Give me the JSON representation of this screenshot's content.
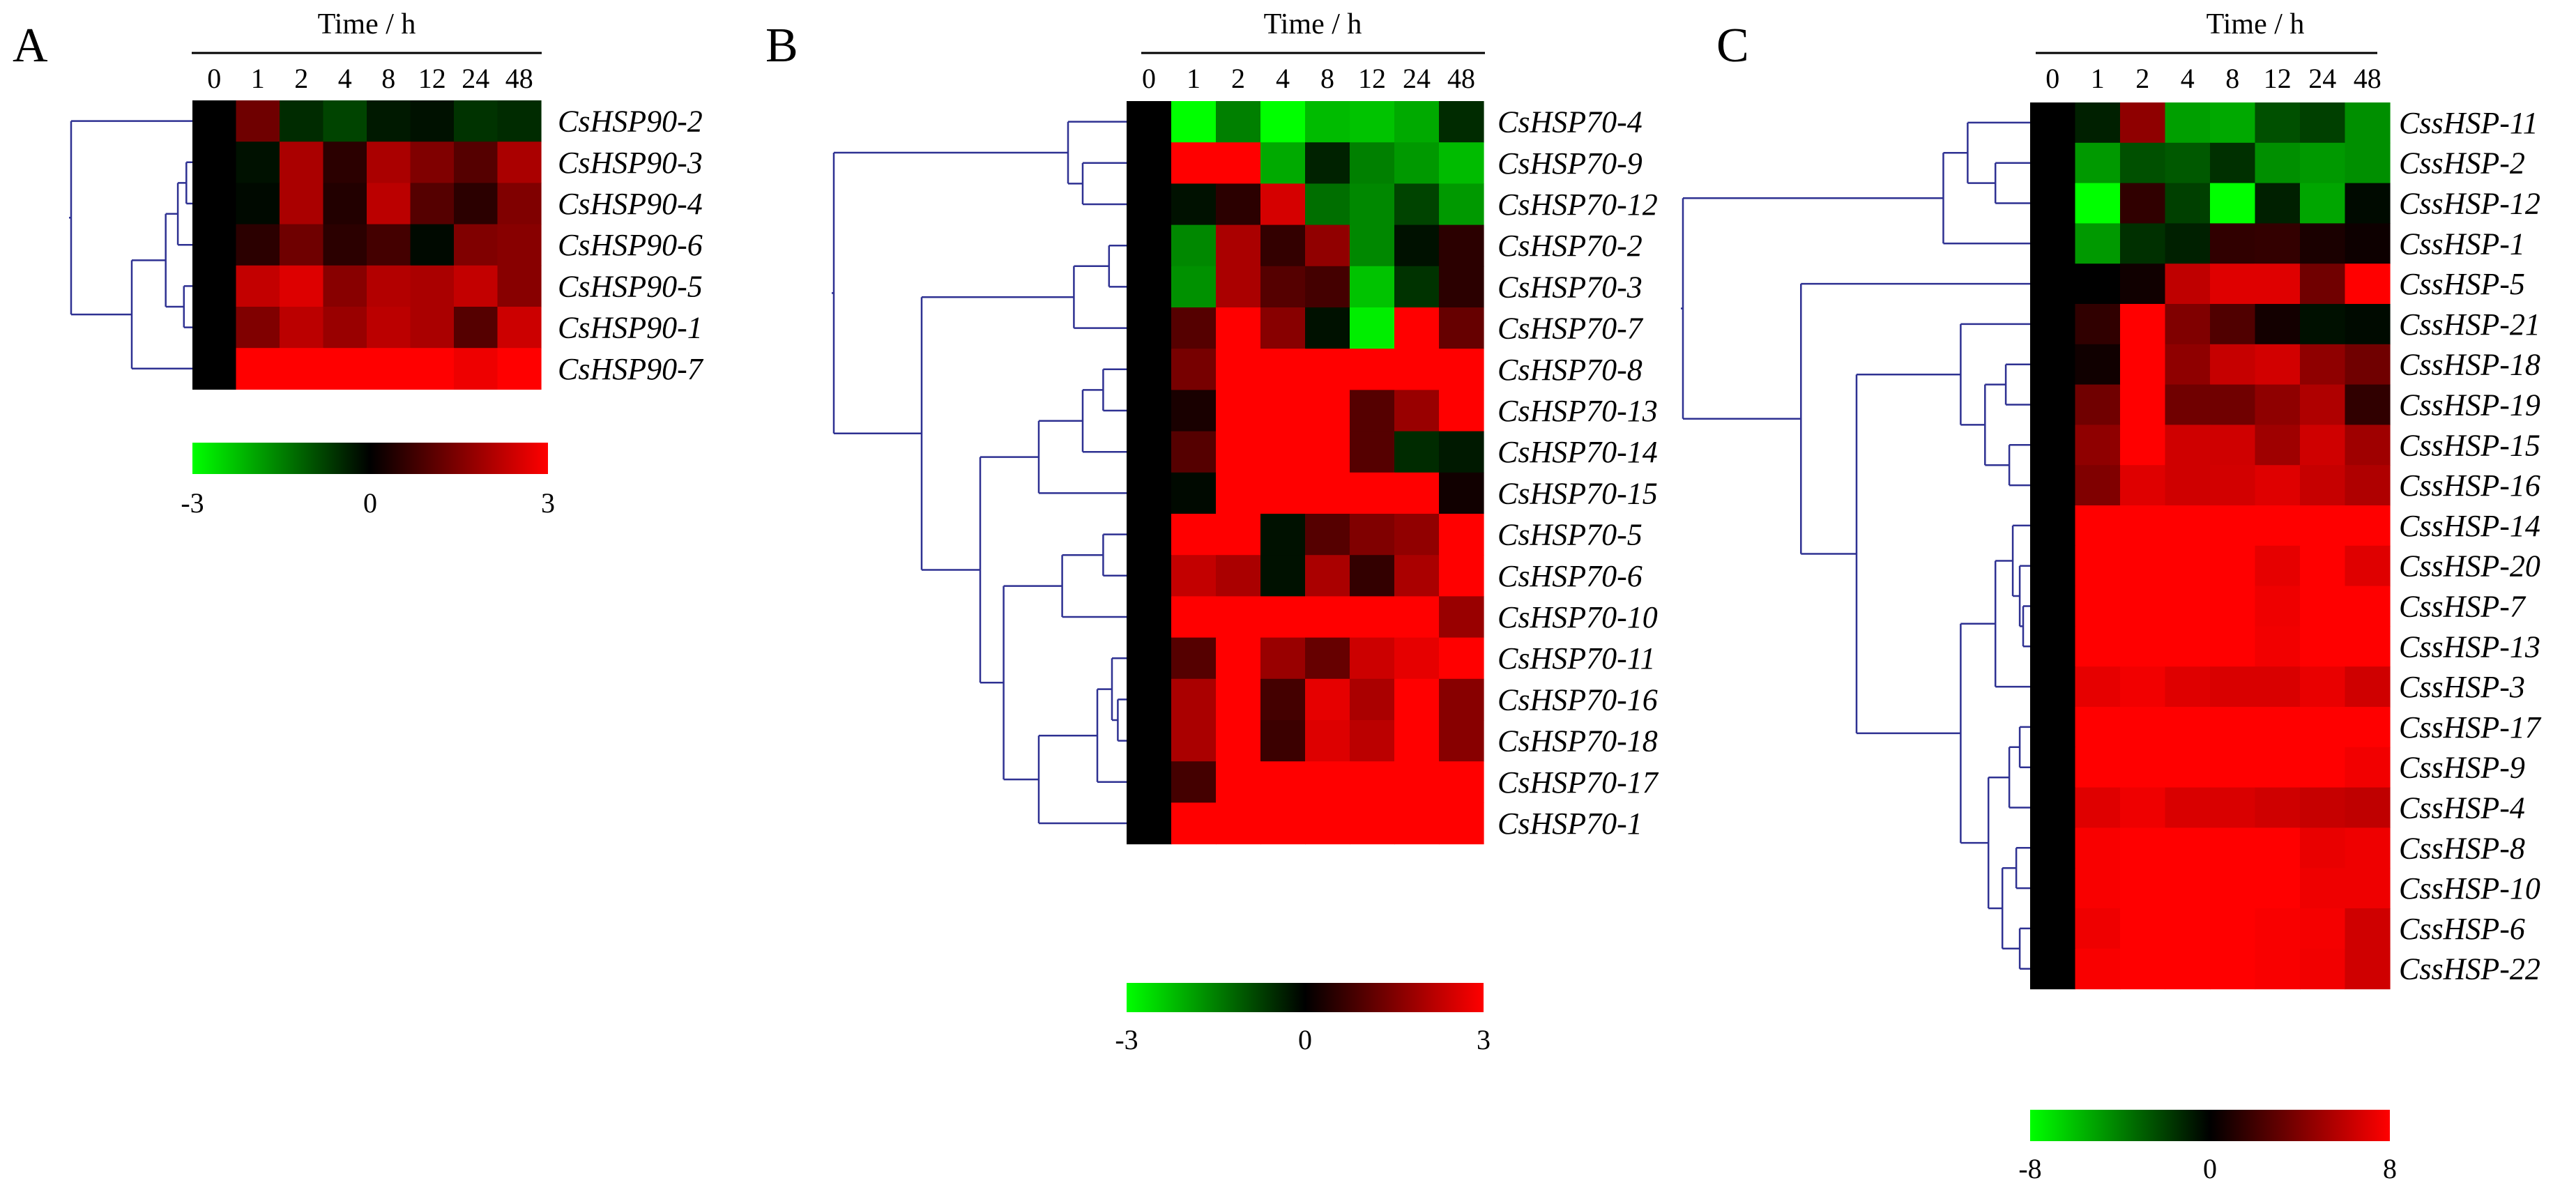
{
  "chart_data": [
    {
      "type": "heatmap",
      "panel": "A",
      "title": "Time / h",
      "columns": [
        "0",
        "1",
        "2",
        "4",
        "8",
        "12",
        "24",
        "48"
      ],
      "rows": [
        "CsHSP90-2",
        "CsHSP90-3",
        "CsHSP90-4",
        "CsHSP90-6",
        "CsHSP90-5",
        "CsHSP90-1",
        "CsHSP90-7"
      ],
      "values": [
        [
          0,
          1.3,
          -0.5,
          -0.8,
          -0.3,
          -0.2,
          -0.6,
          -0.5
        ],
        [
          0,
          -0.2,
          2.0,
          0.5,
          2.0,
          1.5,
          1.0,
          2.0
        ],
        [
          0,
          -0.1,
          2.0,
          0.4,
          2.2,
          1.0,
          0.5,
          1.5
        ],
        [
          0,
          0.5,
          1.3,
          0.5,
          0.8,
          -0.1,
          1.5,
          1.6
        ],
        [
          0,
          2.3,
          2.6,
          1.6,
          2.1,
          2.0,
          2.3,
          1.6
        ],
        [
          0,
          1.5,
          2.2,
          1.8,
          2.2,
          2.0,
          1.0,
          2.4
        ],
        [
          0,
          3,
          3,
          3,
          3,
          3,
          2.8,
          3
        ]
      ],
      "scale": {
        "min": -3,
        "max": 3,
        "tick_labels": [
          "-3",
          "0",
          "3"
        ],
        "low_color": "#00FF00",
        "mid_color": "#000000",
        "high_color": "#FF0000"
      },
      "dendrogram": {
        "root": {
          "d": 1.0,
          "c": [
            {
              "leaf": 0
            },
            {
              "d": 0.5,
              "c": [
                {
                  "d": 0.22,
                  "c": [
                    {
                      "d": 0.12,
                      "c": [
                        {
                          "d": 0.05,
                          "c": [
                            {
                              "leaf": 1
                            },
                            {
                              "leaf": 2
                            }
                          ]
                        },
                        {
                          "leaf": 3
                        }
                      ]
                    },
                    {
                      "d": 0.07,
                      "c": [
                        {
                          "leaf": 4
                        },
                        {
                          "leaf": 5
                        }
                      ]
                    }
                  ]
                },
                {
                  "leaf": 6
                }
              ]
            }
          ]
        }
      }
    },
    {
      "type": "heatmap",
      "panel": "B",
      "title": "Time / h",
      "columns": [
        "0",
        "1",
        "2",
        "4",
        "8",
        "12",
        "24",
        "48"
      ],
      "rows": [
        "CsHSP70-4",
        "CsHSP70-9",
        "CsHSP70-12",
        "CsHSP70-2",
        "CsHSP70-3",
        "CsHSP70-7",
        "CsHSP70-8",
        "CsHSP70-13",
        "CsHSP70-14",
        "CsHSP70-15",
        "CsHSP70-5",
        "CsHSP70-6",
        "CsHSP70-10",
        "CsHSP70-11",
        "CsHSP70-16",
        "CsHSP70-18",
        "CsHSP70-17",
        "CsHSP70-1"
      ],
      "values": [
        [
          0,
          -3,
          -1.5,
          -3,
          -2.2,
          -2.3,
          -2.0,
          -0.5
        ],
        [
          0,
          3,
          3,
          -2.0,
          -0.4,
          -1.5,
          -1.8,
          -2.2
        ],
        [
          0,
          -0.2,
          0.5,
          2.5,
          -1.3,
          -1.6,
          -0.8,
          -1.8
        ],
        [
          0,
          -1.6,
          2.0,
          0.6,
          1.7,
          -1.6,
          -0.2,
          0.5
        ],
        [
          0,
          -1.7,
          2.0,
          1.0,
          0.8,
          -2.3,
          -0.6,
          0.5
        ],
        [
          0,
          1.0,
          3,
          1.6,
          -0.2,
          -2.8,
          3,
          1.2
        ],
        [
          0,
          1.4,
          3,
          3,
          3,
          3,
          3,
          3
        ],
        [
          0,
          0.3,
          3,
          3,
          3,
          1.0,
          1.8,
          3
        ],
        [
          0,
          1.0,
          3,
          3,
          3,
          1.0,
          -0.5,
          -0.3
        ],
        [
          0,
          -0.1,
          3,
          3,
          3,
          3,
          3,
          0.2
        ],
        [
          0,
          3,
          3,
          -0.2,
          1.0,
          1.5,
          1.7,
          3
        ],
        [
          0,
          2.3,
          2.0,
          -0.2,
          2.0,
          0.6,
          2.0,
          3
        ],
        [
          0,
          3,
          3,
          3,
          3,
          3,
          3,
          1.8
        ],
        [
          0,
          1.0,
          3,
          1.8,
          1.2,
          2.4,
          2.7,
          3
        ],
        [
          0,
          2.0,
          3,
          0.8,
          2.7,
          2.0,
          3,
          1.6
        ],
        [
          0,
          2.0,
          3,
          0.7,
          2.6,
          2.2,
          3,
          1.6
        ],
        [
          0,
          0.8,
          3,
          3,
          3,
          3,
          3,
          3
        ],
        [
          0,
          3,
          3,
          3,
          3,
          3,
          3,
          3
        ]
      ],
      "scale": {
        "min": -3,
        "max": 3,
        "tick_labels": [
          "-3",
          "0",
          "3"
        ],
        "low_color": "#00FF00",
        "mid_color": "#000000",
        "high_color": "#FF0000"
      },
      "dendrogram": {
        "root": {
          "d": 1.0,
          "c": [
            {
              "d": 0.2,
              "c": [
                {
                  "leaf": 0
                },
                {
                  "d": 0.15,
                  "c": [
                    {
                      "leaf": 1
                    },
                    {
                      "leaf": 2
                    }
                  ]
                }
              ]
            },
            {
              "d": 0.7,
              "c": [
                {
                  "d": 0.18,
                  "c": [
                    {
                      "d": 0.06,
                      "c": [
                        {
                          "leaf": 3
                        },
                        {
                          "leaf": 4
                        }
                      ]
                    },
                    {
                      "leaf": 5
                    }
                  ]
                },
                {
                  "d": 0.5,
                  "c": [
                    {
                      "d": 0.3,
                      "c": [
                        {
                          "d": 0.15,
                          "c": [
                            {
                              "d": 0.08,
                              "c": [
                                {
                                  "leaf": 6
                                },
                                {
                                  "leaf": 7
                                }
                              ]
                            },
                            {
                              "leaf": 8
                            }
                          ]
                        },
                        {
                          "leaf": 9
                        }
                      ]
                    },
                    {
                      "d": 0.42,
                      "c": [
                        {
                          "d": 0.22,
                          "c": [
                            {
                              "d": 0.08,
                              "c": [
                                {
                                  "leaf": 10
                                },
                                {
                                  "leaf": 11
                                }
                              ]
                            },
                            {
                              "leaf": 12
                            }
                          ]
                        },
                        {
                          "d": 0.3,
                          "c": [
                            {
                              "d": 0.1,
                              "c": [
                                {
                                  "d": 0.05,
                                  "c": [
                                    {
                                      "leaf": 13
                                    },
                                    {
                                      "d": 0.03,
                                      "c": [
                                        {
                                          "leaf": 14
                                        },
                                        {
                                          "leaf": 15
                                        }
                                      ]
                                    }
                                  ]
                                },
                                {
                                  "leaf": 16
                                }
                              ]
                            },
                            {
                              "leaf": 17
                            }
                          ]
                        }
                      ]
                    }
                  ]
                }
              ]
            }
          ]
        }
      }
    },
    {
      "type": "heatmap",
      "panel": "C",
      "title": "Time / h",
      "columns": [
        "0",
        "1",
        "2",
        "4",
        "8",
        "12",
        "24",
        "48"
      ],
      "rows": [
        "CssHSP-11",
        "CssHSP-2",
        "CssHSP-12",
        "CssHSP-1",
        "CssHSP-5",
        "CssHSP-21",
        "CssHSP-18",
        "CssHSP-19",
        "CssHSP-15",
        "CssHSP-16",
        "CssHSP-14",
        "CssHSP-20",
        "CssHSP-7",
        "CssHSP-13",
        "CssHSP-3",
        "CssHSP-17",
        "CssHSP-9",
        "CssHSP-4",
        "CssHSP-8",
        "CssHSP-10",
        "CssHSP-6",
        "CssHSP-22"
      ],
      "values": [
        [
          0,
          -1,
          4.5,
          -5,
          -5.3,
          -2.5,
          -2,
          -4.5
        ],
        [
          0,
          -4.8,
          -2.5,
          -2.8,
          -1.5,
          -4.5,
          -4.8,
          -4.5
        ],
        [
          0,
          -8,
          1.5,
          -2,
          -8,
          -1,
          -5.2,
          -0.3
        ],
        [
          0,
          -4.8,
          -1.5,
          -1,
          1.5,
          1.6,
          0.8,
          0.4
        ],
        [
          0,
          0,
          0.5,
          6,
          7,
          7,
          3.5,
          8
        ],
        [
          0,
          1.5,
          8,
          4,
          2.5,
          0.6,
          -0.5,
          -0.3
        ],
        [
          0,
          0.5,
          8,
          4.5,
          6.2,
          6.6,
          4.5,
          3.5
        ],
        [
          0,
          3.5,
          8,
          3.5,
          3.5,
          4.5,
          5.5,
          1.5
        ],
        [
          0,
          4.5,
          8,
          6.5,
          6.5,
          5.0,
          6.5,
          5.0
        ],
        [
          0,
          4.0,
          7.0,
          6.5,
          6.6,
          7.0,
          6.2,
          5.5
        ],
        [
          0,
          8,
          8,
          8,
          8,
          8,
          8,
          8
        ],
        [
          0,
          8,
          8,
          8,
          8,
          7.2,
          8,
          7.0
        ],
        [
          0,
          8,
          8,
          8,
          8,
          7.5,
          8,
          8
        ],
        [
          0,
          8,
          8,
          8,
          8,
          7.6,
          8,
          8
        ],
        [
          0,
          7.2,
          7.6,
          7.0,
          6.8,
          6.8,
          7.3,
          6.5
        ],
        [
          0,
          8,
          8,
          8,
          8,
          8,
          8,
          8
        ],
        [
          0,
          8,
          8,
          8,
          8,
          8,
          8,
          7.6
        ],
        [
          0,
          7.0,
          7.5,
          6.8,
          6.8,
          6.5,
          6.2,
          6.0
        ],
        [
          0,
          7.8,
          8,
          8,
          8,
          8,
          7.3,
          7.5
        ],
        [
          0,
          7.8,
          8,
          8,
          8,
          8,
          7.5,
          7.5
        ],
        [
          0,
          7.5,
          8,
          8,
          8,
          7.8,
          7.7,
          6.5
        ],
        [
          0,
          7.8,
          8,
          8,
          8,
          7.8,
          7.6,
          6.5
        ]
      ],
      "scale": {
        "min": -8,
        "max": 8,
        "tick_labels": [
          "-8",
          "0",
          "8"
        ],
        "low_color": "#00FF00",
        "mid_color": "#000000",
        "high_color": "#FF0000"
      },
      "dendrogram": {
        "root": {
          "d": 1.0,
          "c": [
            {
              "d": 0.25,
              "c": [
                {
                  "d": 0.18,
                  "c": [
                    {
                      "leaf": 0
                    },
                    {
                      "d": 0.1,
                      "c": [
                        {
                          "leaf": 1
                        },
                        {
                          "leaf": 2
                        }
                      ]
                    }
                  ]
                },
                {
                  "leaf": 3
                }
              ]
            },
            {
              "d": 0.66,
              "c": [
                {
                  "leaf": 4
                },
                {
                  "d": 0.5,
                  "c": [
                    {
                      "d": 0.2,
                      "c": [
                        {
                          "leaf": 5
                        },
                        {
                          "d": 0.13,
                          "c": [
                            {
                              "d": 0.07,
                              "c": [
                                {
                                  "leaf": 6
                                },
                                {
                                  "leaf": 7
                                }
                              ]
                            },
                            {
                              "d": 0.06,
                              "c": [
                                {
                                  "leaf": 8
                                },
                                {
                                  "leaf": 9
                                }
                              ]
                            }
                          ]
                        }
                      ]
                    },
                    {
                      "d": 0.2,
                      "c": [
                        {
                          "d": 0.1,
                          "c": [
                            {
                              "d": 0.05,
                              "c": [
                                {
                                  "leaf": 10
                                },
                                {
                                  "d": 0.03,
                                  "c": [
                                    {
                                      "leaf": 11
                                    },
                                    {
                                      "d": 0.02,
                                      "c": [
                                        {
                                          "leaf": 12
                                        },
                                        {
                                          "leaf": 13
                                        }
                                      ]
                                    }
                                  ]
                                }
                              ]
                            },
                            {
                              "leaf": 14
                            }
                          ]
                        },
                        {
                          "d": 0.12,
                          "c": [
                            {
                              "d": 0.06,
                              "c": [
                                {
                                  "d": 0.03,
                                  "c": [
                                    {
                                      "leaf": 15
                                    },
                                    {
                                      "leaf": 16
                                    }
                                  ]
                                },
                                {
                                  "leaf": 17
                                }
                              ]
                            },
                            {
                              "d": 0.08,
                              "c": [
                                {
                                  "d": 0.04,
                                  "c": [
                                    {
                                      "leaf": 18
                                    },
                                    {
                                      "leaf": 19
                                    }
                                  ]
                                },
                                {
                                  "d": 0.03,
                                  "c": [
                                    {
                                      "leaf": 20
                                    },
                                    {
                                      "leaf": 21
                                    }
                                  ]
                                }
                              ]
                            }
                          ]
                        }
                      ]
                    }
                  ]
                }
              ]
            }
          ]
        }
      }
    }
  ]
}
